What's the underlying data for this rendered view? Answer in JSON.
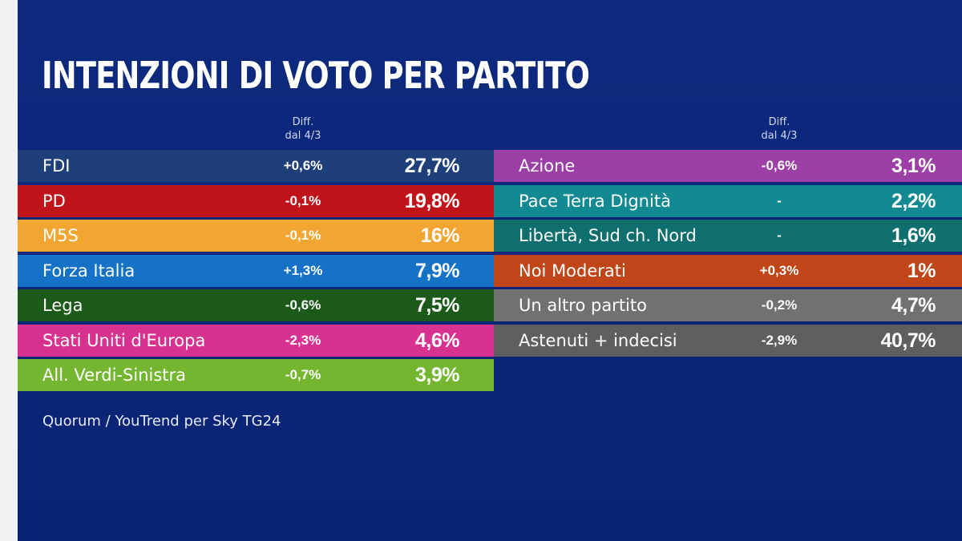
{
  "title": "INTENZIONI DI VOTO PER PARTITO",
  "diff_header": {
    "line1": "Diff.",
    "line2": "dal 4/3"
  },
  "source": "Quorum / YouTrend per Sky TG24",
  "colors": {
    "background": "#0b2679",
    "fdi": "#1e3f7a",
    "pd": "#c0131a",
    "m5s": "#f2a531",
    "forza_italia": "#1572c7",
    "lega": "#1c5a1a",
    "stati_uniti_europa": "#d7328f",
    "avs": "#74b62f",
    "azione": "#9c3fa6",
    "pace_terra_dignita": "#138a91",
    "liberta_sud_nord": "#0f6e6e",
    "noi_moderati": "#c0461a",
    "un_altro_partito": "#717171",
    "astenuti": "#5f5f5f"
  },
  "chart_data": {
    "type": "table",
    "title": "INTENZIONI DI VOTO PER PARTITO",
    "columns": [
      "",
      "Diff. dal 4/3",
      ""
    ],
    "left": [
      {
        "party": "FDI",
        "diff": "+0,6%",
        "value": "27,7%",
        "color": "#1e3f7a"
      },
      {
        "party": "PD",
        "diff": "-0,1%",
        "value": "19,8%",
        "color": "#c0131a"
      },
      {
        "party": "M5S",
        "diff": "-0,1%",
        "value": "16%",
        "color": "#f2a531"
      },
      {
        "party": "Forza Italia",
        "diff": "+1,3%",
        "value": "7,9%",
        "color": "#1572c7"
      },
      {
        "party": "Lega",
        "diff": "-0,6%",
        "value": "7,5%",
        "color": "#1c5a1a"
      },
      {
        "party": "Stati Uniti d'Europa",
        "diff": "-2,3%",
        "value": "4,6%",
        "color": "#d7328f"
      },
      {
        "party": "All. Verdi-Sinistra",
        "diff": "-0,7%",
        "value": "3,9%",
        "color": "#74b62f"
      }
    ],
    "right": [
      {
        "party": "Azione",
        "diff": "-0,6%",
        "value": "3,1%",
        "color": "#9c3fa6"
      },
      {
        "party": "Pace Terra Dignità",
        "diff": "-",
        "value": "2,2%",
        "color": "#138a91"
      },
      {
        "party": "Libertà, Sud ch. Nord",
        "diff": "-",
        "value": "1,6%",
        "color": "#0f6e6e"
      },
      {
        "party": "Noi Moderati",
        "diff": "+0,3%",
        "value": "1%",
        "color": "#c0461a"
      },
      {
        "party": "Un altro partito",
        "diff": "-0,2%",
        "value": "4,7%",
        "color": "#717171"
      },
      {
        "party": "Astenuti + indecisi",
        "diff": "-2,9%",
        "value": "40,7%",
        "color": "#5f5f5f"
      }
    ]
  }
}
